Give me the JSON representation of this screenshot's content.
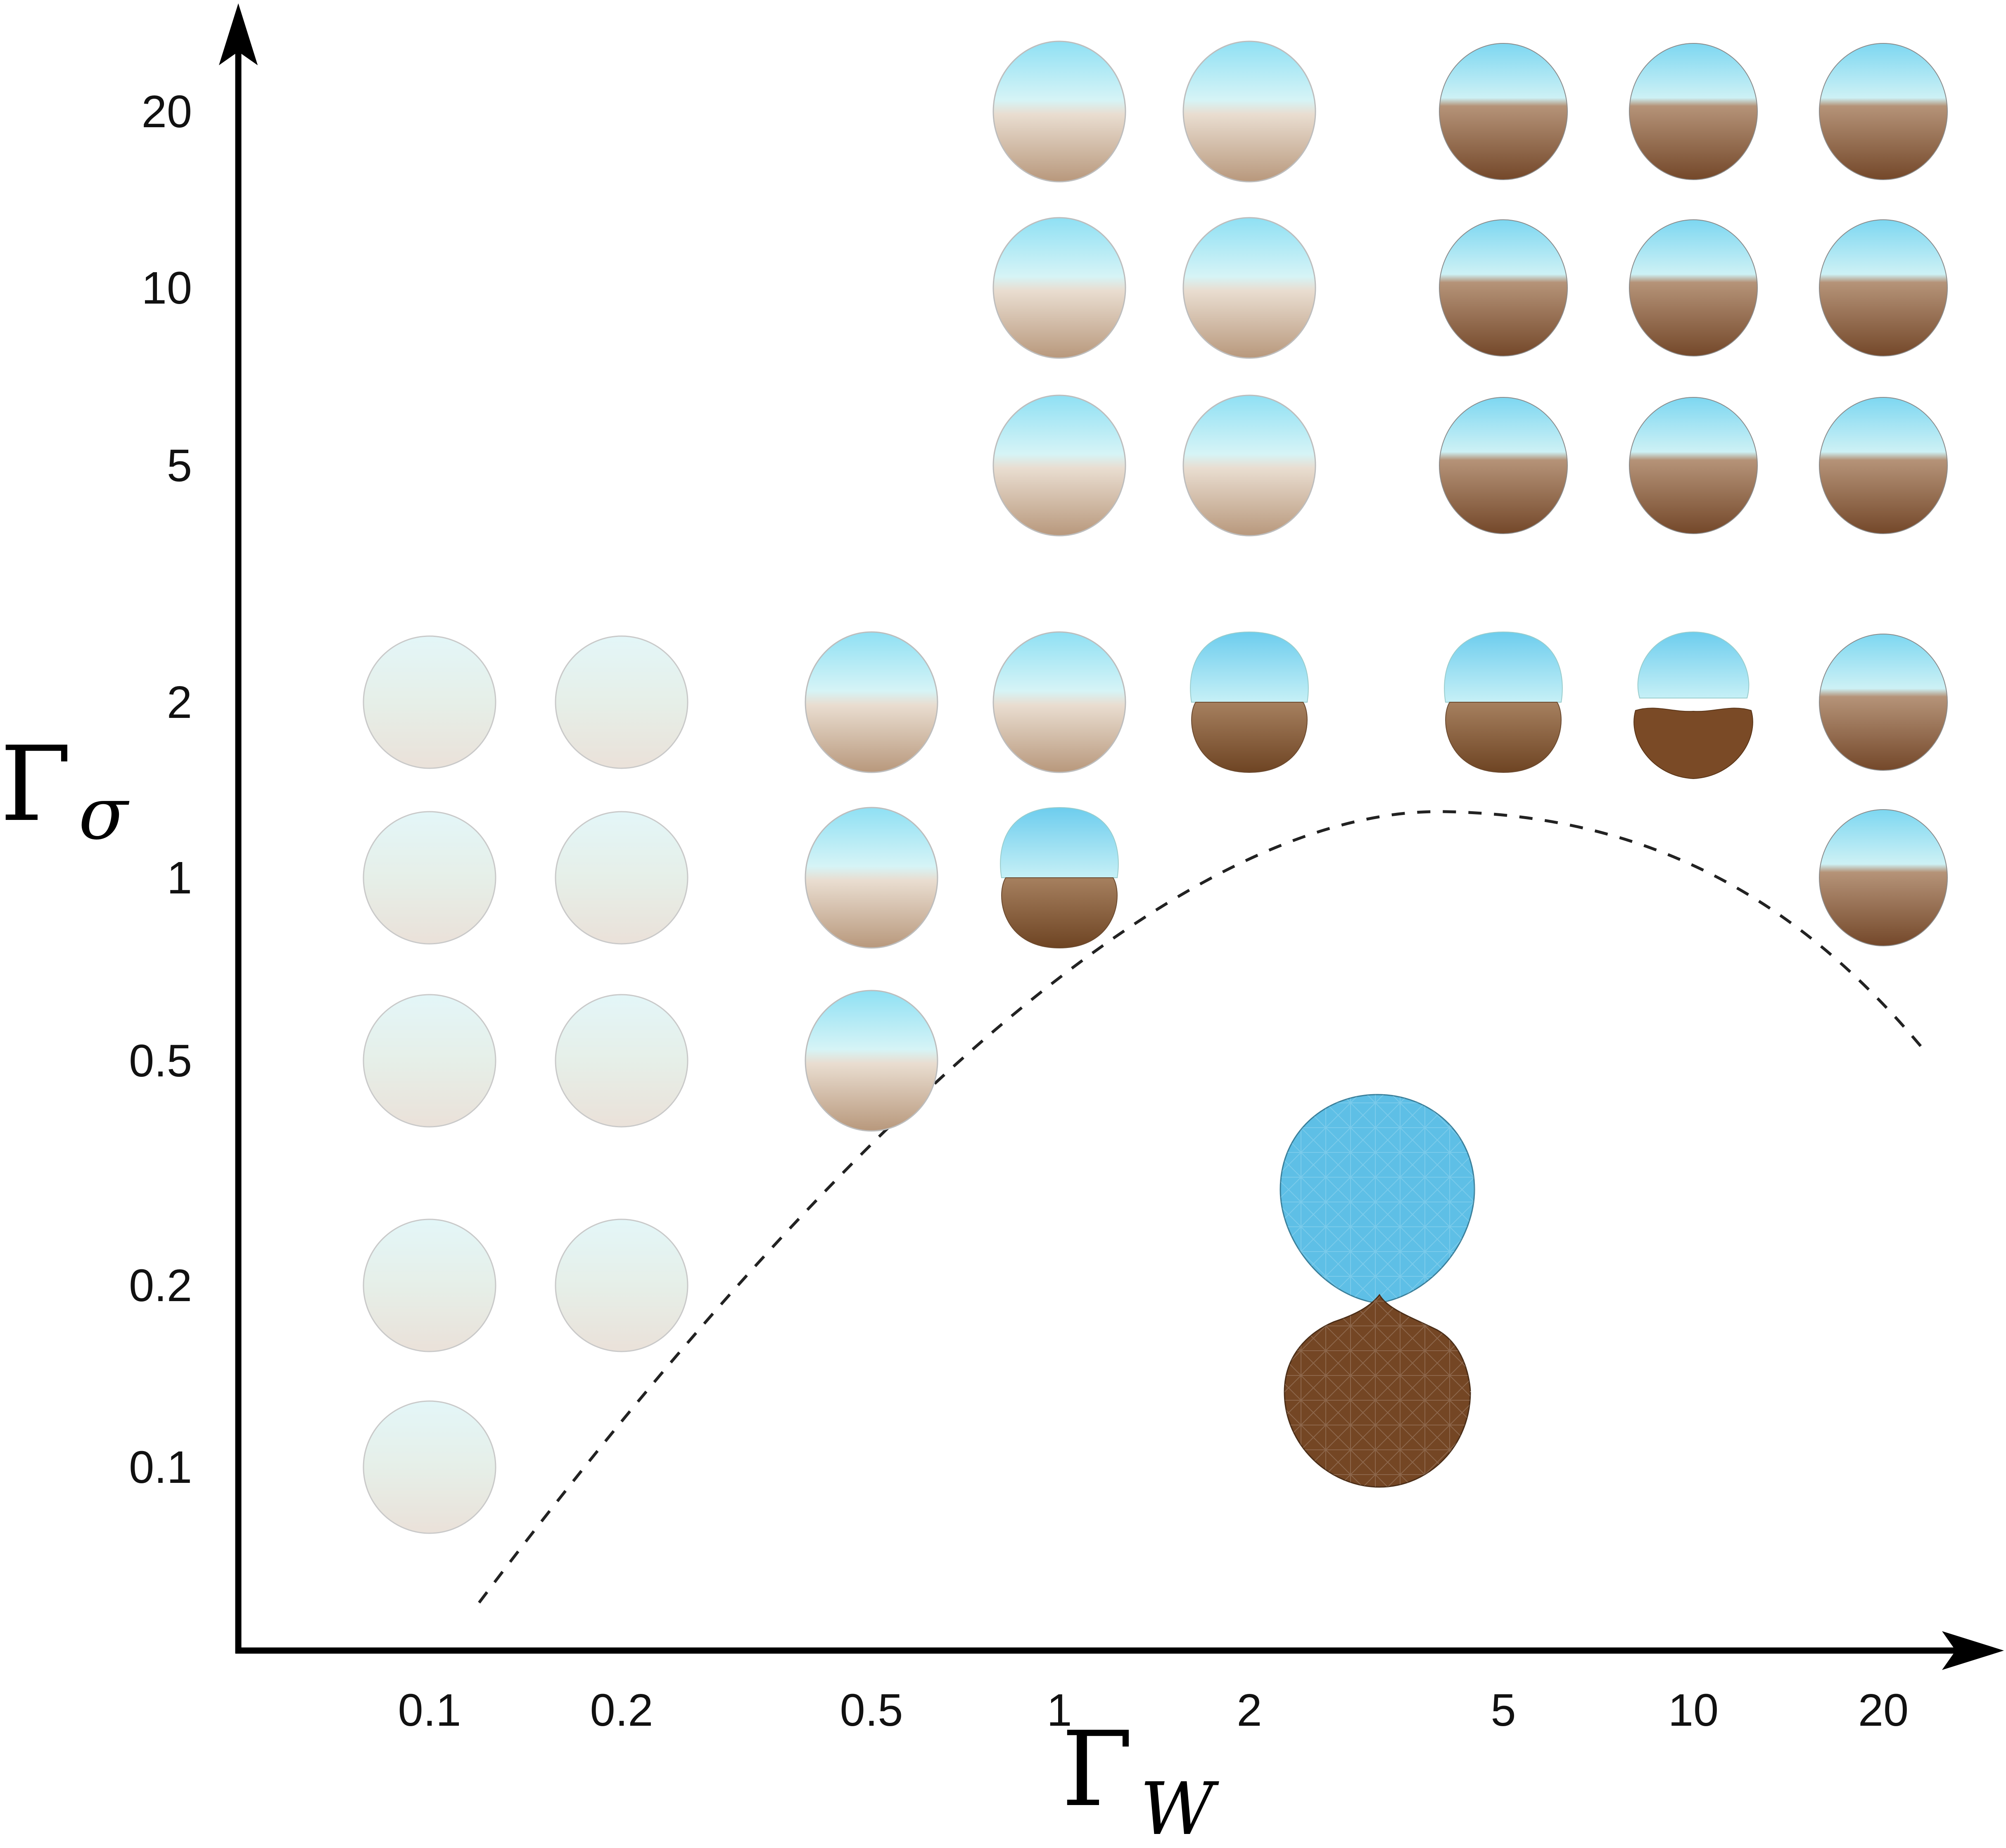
{
  "axes": {
    "x_title": "Γ",
    "x_subscript": "W",
    "y_title": "Γ",
    "y_subscript": "σ",
    "x_ticks": [
      "0.1",
      "0.2",
      "0.5",
      "1",
      "2",
      "5",
      "10",
      "20"
    ],
    "y_ticks": [
      "20",
      "10",
      "5",
      "2",
      "1",
      "0.5",
      "0.2",
      "0.1"
    ]
  },
  "colors": {
    "axis": "#000000",
    "top_species": "#5fc6ea",
    "bottom_species": "#7a4a26",
    "mixed_light": "#dfeee9",
    "boundary": "#222222"
  },
  "cells": [
    {
      "x": "1",
      "y": "20",
      "state": "partial"
    },
    {
      "x": "2",
      "y": "20",
      "state": "partial"
    },
    {
      "x": "5",
      "y": "20",
      "state": "separated"
    },
    {
      "x": "10",
      "y": "20",
      "state": "separated"
    },
    {
      "x": "20",
      "y": "20",
      "state": "separated"
    },
    {
      "x": "1",
      "y": "10",
      "state": "partial"
    },
    {
      "x": "2",
      "y": "10",
      "state": "partial"
    },
    {
      "x": "5",
      "y": "10",
      "state": "separated"
    },
    {
      "x": "10",
      "y": "10",
      "state": "separated"
    },
    {
      "x": "20",
      "y": "10",
      "state": "separated"
    },
    {
      "x": "1",
      "y": "5",
      "state": "partial"
    },
    {
      "x": "2",
      "y": "5",
      "state": "partial"
    },
    {
      "x": "5",
      "y": "5",
      "state": "separated"
    },
    {
      "x": "10",
      "y": "5",
      "state": "separated"
    },
    {
      "x": "20",
      "y": "5",
      "state": "separated"
    },
    {
      "x": "0.1",
      "y": "2",
      "state": "mixed"
    },
    {
      "x": "0.2",
      "y": "2",
      "state": "mixed"
    },
    {
      "x": "0.5",
      "y": "2",
      "state": "partial"
    },
    {
      "x": "1",
      "y": "2",
      "state": "partial"
    },
    {
      "x": "2",
      "y": "2",
      "state": "necked"
    },
    {
      "x": "5",
      "y": "2",
      "state": "necked"
    },
    {
      "x": "10",
      "y": "2",
      "state": "split"
    },
    {
      "x": "20",
      "y": "2",
      "state": "separated"
    },
    {
      "x": "0.1",
      "y": "1",
      "state": "mixed"
    },
    {
      "x": "0.2",
      "y": "1",
      "state": "mixed"
    },
    {
      "x": "0.5",
      "y": "1",
      "state": "partial"
    },
    {
      "x": "1",
      "y": "1",
      "state": "necked"
    },
    {
      "x": "20",
      "y": "1",
      "state": "separated"
    },
    {
      "x": "0.1",
      "y": "0.5",
      "state": "mixed"
    },
    {
      "x": "0.2",
      "y": "0.5",
      "state": "mixed"
    },
    {
      "x": "0.5",
      "y": "0.5",
      "state": "partial"
    },
    {
      "x": "0.1",
      "y": "0.2",
      "state": "mixed"
    },
    {
      "x": "0.2",
      "y": "0.2",
      "state": "mixed"
    },
    {
      "x": "0.1",
      "y": "0.1",
      "state": "mixed"
    }
  ]
}
